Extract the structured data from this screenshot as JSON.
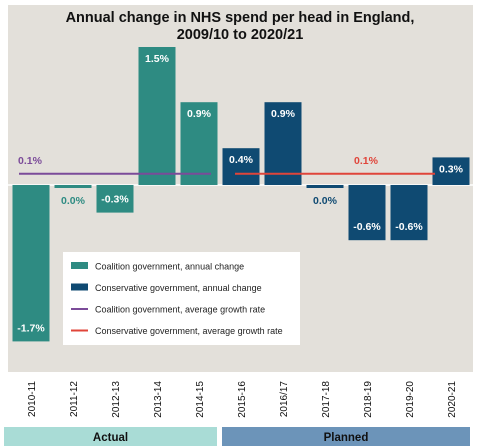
{
  "chart_data": {
    "type": "bar",
    "title": "Annual change in NHS spend per head in England, 2009/10 to 2020/21",
    "title_lines": [
      "Annual change in NHS spend per head in England,",
      "2009/10 to 2020/21"
    ],
    "categories": [
      "2010-11",
      "2011-12",
      "2012-13",
      "2013-14",
      "2014-15",
      "2015-16",
      "2016/17",
      "2017-18",
      "2018-19",
      "2019-20",
      "2020-21"
    ],
    "series": [
      {
        "name": "Coalition government, annual change",
        "color": "#2e8b82",
        "values": [
          -1.7,
          0.0,
          -0.3,
          1.5,
          0.9,
          null,
          null,
          null,
          null,
          null,
          null
        ],
        "labels": [
          "-1.7%",
          "0.0%",
          "-0.3%",
          "1.5%",
          "0.9%",
          "",
          "",
          "",
          "",
          "",
          ""
        ]
      },
      {
        "name": "Conservative government, annual change",
        "color": "#0f4a72",
        "values": [
          null,
          null,
          null,
          null,
          null,
          0.4,
          0.9,
          0.0,
          -0.6,
          -0.6,
          0.3
        ],
        "labels": [
          "",
          "",
          "",
          "",
          "",
          "0.4%",
          "0.9%",
          "0.0%",
          "-0.6%",
          "-0.6%",
          "0.3%"
        ]
      }
    ],
    "reference_lines": [
      {
        "name": "Coalition government, average growth rate",
        "value": 0.1,
        "label": "0.1%",
        "color": "#7b4b99",
        "from_category": "2010-11",
        "to_category": "2014-15"
      },
      {
        "name": "Conservative government, average growth rate",
        "value": 0.1,
        "label": "0.1%",
        "color": "#e0453a",
        "from_category": "2015-16",
        "to_category": "2020-21"
      }
    ],
    "periods": [
      {
        "label": "Actual",
        "color": "#a9dcd6",
        "from_category": "2010-11",
        "to_category": "2014-15"
      },
      {
        "label": "Planned",
        "color": "#6c94b9",
        "from_category": "2015-16",
        "to_category": "2020-21"
      }
    ],
    "ylim": [
      -1.85,
      1.75
    ],
    "background": "#e3e0da",
    "legend_position": "center-left"
  }
}
